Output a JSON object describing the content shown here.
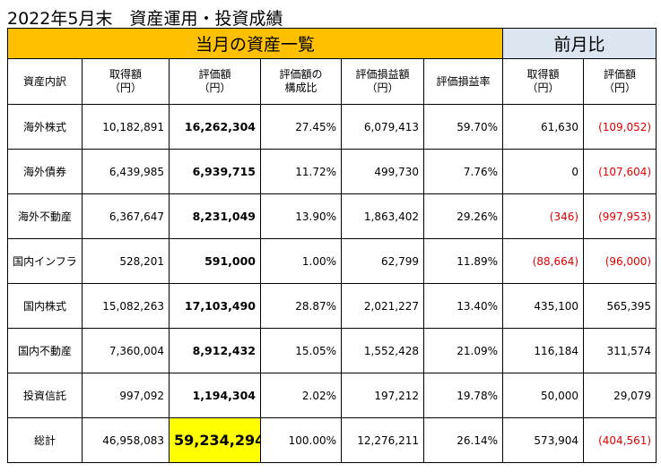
{
  "title": "2022年5月末　資産運用・投資成績",
  "header": {
    "current_month": "当月の資産一覧",
    "previous_month": "前月比"
  },
  "columns": [
    {
      "line1": "資産内訳",
      "line2": ""
    },
    {
      "line1": "取得額",
      "line2": "（円）"
    },
    {
      "line1": "評価額",
      "line2": "（円）"
    },
    {
      "line1": "評価額の",
      "line2": "構成比"
    },
    {
      "line1": "評価損益額",
      "line2": "（円）"
    },
    {
      "line1": "評価損益率",
      "line2": ""
    },
    {
      "line1": "取得額",
      "line2": "（円）"
    },
    {
      "line1": "評価額",
      "line2": "（円）"
    }
  ],
  "rows": [
    {
      "name": "海外株式",
      "cost": "10,182,891",
      "value": "16,262,304",
      "ratio": "27.45%",
      "gain": "6,079,413",
      "gain_rate": "59.70%",
      "prev_cost": "61,630",
      "prev_value": "(109,052)"
    },
    {
      "name": "海外債券",
      "cost": "6,439,985",
      "value": "6,939,715",
      "ratio": "11.72%",
      "gain": "499,730",
      "gain_rate": "7.76%",
      "prev_cost": "0",
      "prev_value": "(107,604)"
    },
    {
      "name": "海外不動産",
      "cost": "6,367,647",
      "value": "8,231,049",
      "ratio": "13.90%",
      "gain": "1,863,402",
      "gain_rate": "29.26%",
      "prev_cost": "(346)",
      "prev_value": "(997,953)"
    },
    {
      "name": "国内インフラ",
      "cost": "528,201",
      "value": "591,000",
      "ratio": "1.00%",
      "gain": "62,799",
      "gain_rate": "11.89%",
      "prev_cost": "(88,664)",
      "prev_value": "(96,000)"
    },
    {
      "name": "国内株式",
      "cost": "15,082,263",
      "value": "17,103,490",
      "ratio": "28.87%",
      "gain": "2,021,227",
      "gain_rate": "13.40%",
      "prev_cost": "435,100",
      "prev_value": "565,395"
    },
    {
      "name": "国内不動産",
      "cost": "7,360,004",
      "value": "8,912,432",
      "ratio": "15.05%",
      "gain": "1,552,428",
      "gain_rate": "21.09%",
      "prev_cost": "116,184",
      "prev_value": "311,574"
    },
    {
      "name": "投資信託",
      "cost": "997,092",
      "value": "1,194,304",
      "ratio": "2.02%",
      "gain": "197,212",
      "gain_rate": "19.78%",
      "prev_cost": "50,000",
      "prev_value": "29,079"
    }
  ],
  "total": {
    "name": "総計",
    "cost": "46,958,083",
    "value": "59,234,294",
    "ratio": "100.00%",
    "gain": "12,276,211",
    "gain_rate": "26.14%",
    "prev_cost": "573,904",
    "prev_value": "(404,561)"
  },
  "colors": {
    "header_main": "#ffc000",
    "header_prev": "#dce6f1",
    "total_highlight": "#ffff00",
    "negative": "#e00000"
  }
}
